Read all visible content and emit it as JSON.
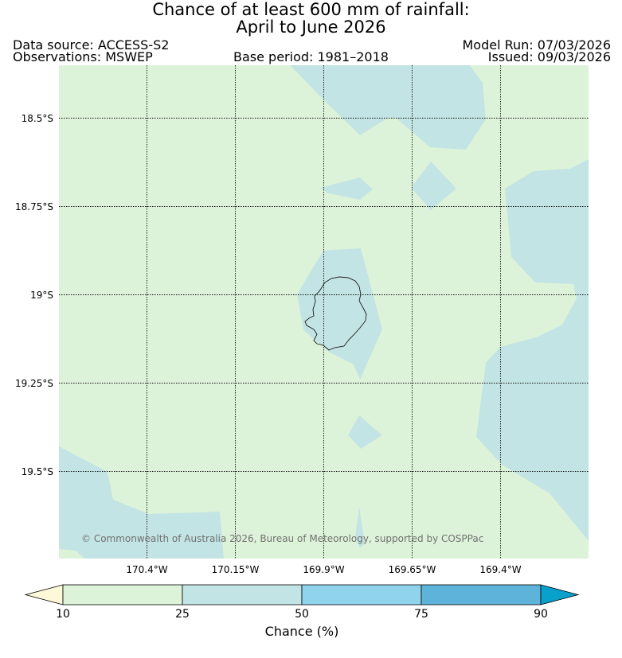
{
  "title_line1": "Chance of at least 600 mm of rainfall:",
  "title_line2": "April to June 2026",
  "data_source": "Data source: ACCESS-S2",
  "observations": "Observations: MSWEP",
  "base_period": "Base period: 1981–2018",
  "model_run": "Model Run: 07/03/2026",
  "issued": "Issued: 09/03/2026",
  "copyright": "© Commonwealth of Australia 2026, Bureau of Meteorology, supported by COSPPac",
  "map": {
    "lat_labels": [
      "18.5°S",
      "18.75°S",
      "19°S",
      "19.25°S",
      "19.5°S"
    ],
    "lon_labels": [
      "170.4°W",
      "170.15°W",
      "169.9°W",
      "169.65°W",
      "169.4°W"
    ]
  },
  "legend": {
    "title": "Chance (%)",
    "ticks": [
      "10",
      "25",
      "50",
      "75",
      "90"
    ],
    "colors": {
      "below_10": "#fdf8d8",
      "c10_25": "#ddf3d9",
      "c25_50": "#c3e4e4",
      "c50_75": "#8fd3ec",
      "c75_90": "#5db3d9",
      "above_90": "#0aa0cc"
    }
  }
}
